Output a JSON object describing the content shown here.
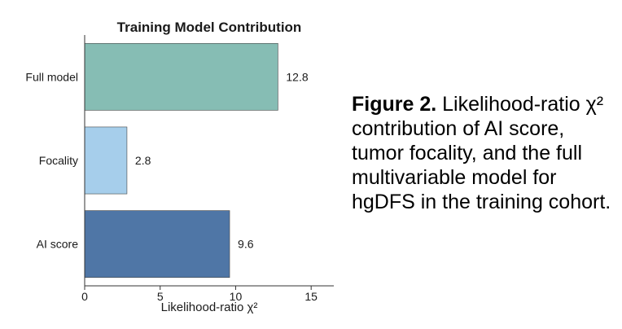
{
  "chart_data": {
    "type": "bar",
    "orientation": "horizontal",
    "title": "Training Model Contribution",
    "xlabel": "Likelihood-ratio χ²",
    "ylabel": "",
    "categories": [
      "Full model",
      "Focality",
      "AI score"
    ],
    "values": [
      12.8,
      2.8,
      9.6
    ],
    "value_labels": [
      "12.8",
      "2.8",
      "9.6"
    ],
    "colors": [
      "#86bdb4",
      "#a6ceeb",
      "#4f76a6"
    ],
    "xlim": [
      0,
      16.5
    ],
    "xticks": [
      0,
      5,
      10,
      15
    ],
    "grid": false
  },
  "caption": {
    "label": "Figure 2.",
    "text": "Likelihood-ratio χ² contribution of AI score, tumor focality, and the full multivariable model for hgDFS in the training cohort."
  }
}
